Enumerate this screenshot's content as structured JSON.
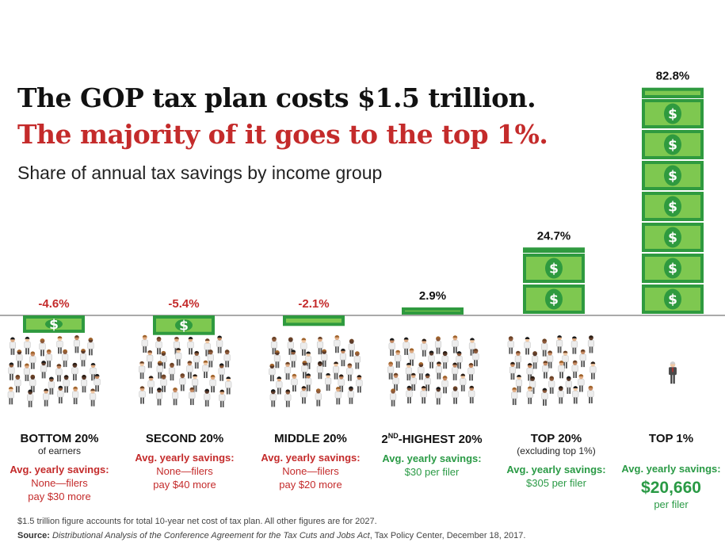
{
  "header": {
    "title_line1": "The GOP tax plan costs $1.5 trillion.",
    "title_line2": "The majority of it goes to the top 1%.",
    "subtitle": "Share of annual tax savings by income group"
  },
  "colors": {
    "positive": "#2a9a45",
    "negative": "#c42b2b",
    "bill": "#7ec850",
    "bill_dark": "#2f9a3f"
  },
  "chart_data": {
    "type": "bar",
    "unit": "%",
    "categories": [
      "BOTTOM 20%",
      "SECOND 20%",
      "MIDDLE 20%",
      "2ND-HIGHEST 20%",
      "TOP 20%",
      "TOP 1%"
    ],
    "values": [
      -4.6,
      -5.4,
      -2.1,
      2.9,
      24.7,
      82.8
    ],
    "value_labels": [
      "-4.6%",
      "-5.4%",
      "-2.1%",
      "2.9%",
      "24.7%",
      "82.8%"
    ]
  },
  "groups": [
    {
      "name": "BOTTOM 20%",
      "sub": "of earners",
      "savings_label": "Avg. yearly savings:",
      "savings_line1": "None—filers",
      "savings_line2": "pay $30 more",
      "tone": "red"
    },
    {
      "name": "SECOND 20%",
      "sub": "",
      "savings_label": "Avg. yearly savings:",
      "savings_line1": "None—filers",
      "savings_line2": "pay $40 more",
      "tone": "red"
    },
    {
      "name": "MIDDLE 20%",
      "sub": "",
      "savings_label": "Avg. yearly savings:",
      "savings_line1": "None—filers",
      "savings_line2": "pay $20 more",
      "tone": "red"
    },
    {
      "name_main": "2",
      "name_sup": "ND",
      "name_rest": "-HIGHEST 20%",
      "sub": "",
      "savings_label": "Avg. yearly savings:",
      "savings_line1": "$30 per filer",
      "savings_line2": "",
      "tone": "green"
    },
    {
      "name": "TOP 20%",
      "sub": "(excluding top 1%)",
      "savings_label": "Avg. yearly savings:",
      "savings_line1": "$305 per filer",
      "savings_line2": "",
      "tone": "green"
    },
    {
      "name": "TOP 1%",
      "sub": "",
      "savings_label": "Avg. yearly savings:",
      "savings_big": "$20,660",
      "savings_line2": "per filer",
      "tone": "green"
    }
  ],
  "footer": {
    "note": "$1.5 trillion figure accounts for total 10-year net cost of tax plan. All other figures are for 2027.",
    "source_label": "Source:",
    "source_title": "Distributional Analysis of the Conference Agreement for the Tax Cuts and Jobs Act",
    "source_rest": ", Tax Policy Center, December 18, 2017."
  }
}
